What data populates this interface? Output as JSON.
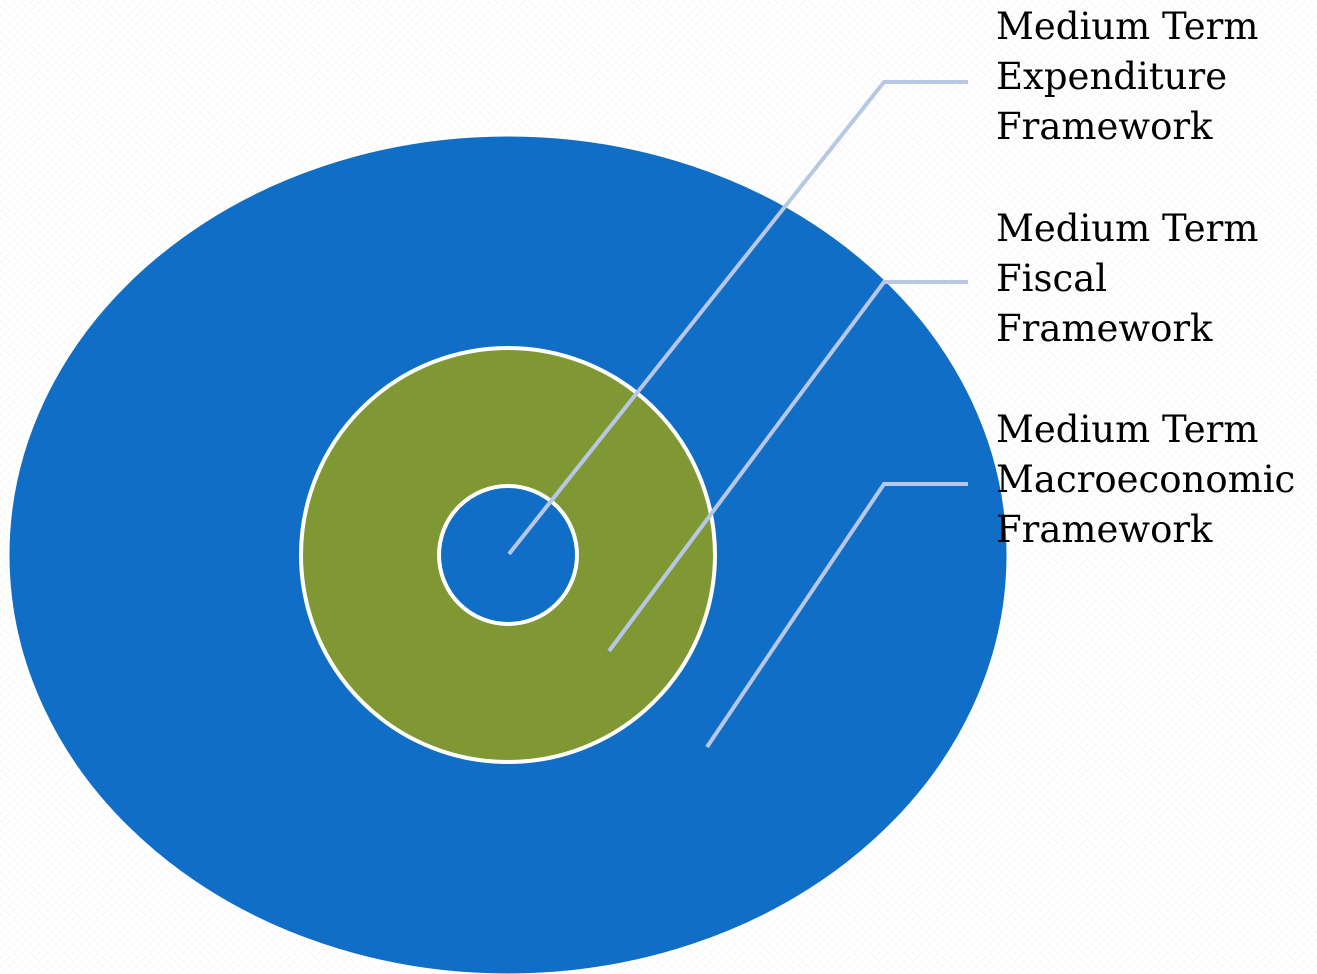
{
  "colors": {
    "outer_ring": "#106ec6",
    "middle_ring": "#7f9834",
    "inner_circle": "#106ec6",
    "ring_outline": "#ffffff",
    "leader_lines": "#b8c7e6"
  },
  "layers": [
    {
      "id": "expenditure",
      "lines": [
        "Medium Term",
        "Expenditure",
        "Framework"
      ]
    },
    {
      "id": "fiscal",
      "lines": [
        "Medium Term",
        "Fiscal",
        "Framework"
      ]
    },
    {
      "id": "macroeconomic",
      "lines": [
        "Medium Term",
        "Macroeconomic",
        "Framework"
      ]
    }
  ]
}
